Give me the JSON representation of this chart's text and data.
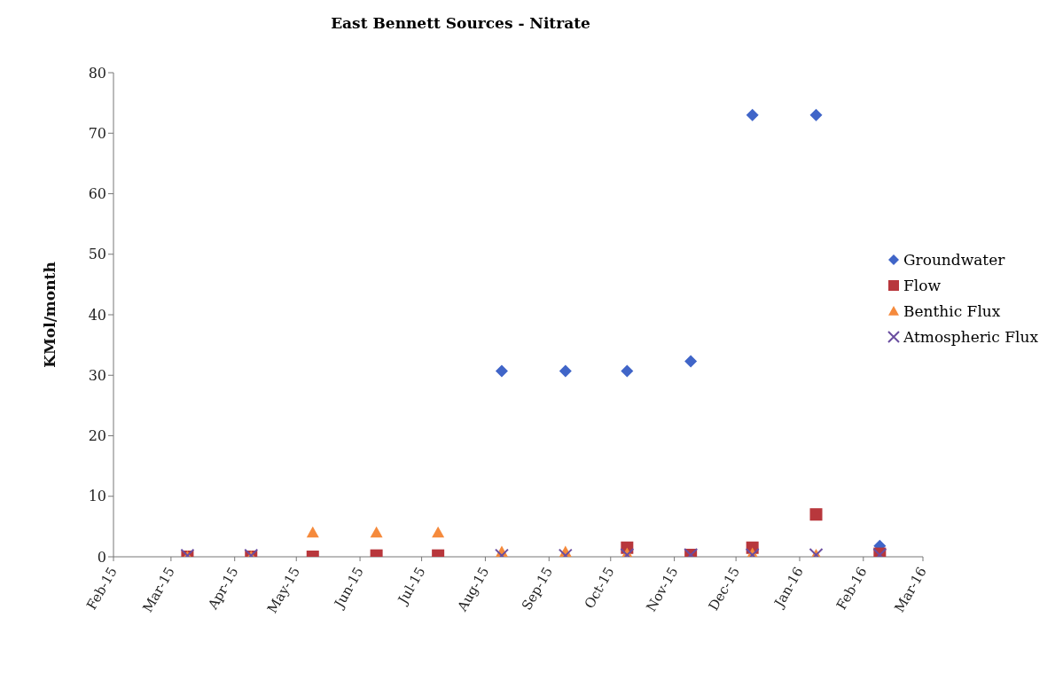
{
  "chart_data": {
    "type": "scatter",
    "title": "East Bennett Sources - Nitrate",
    "ylabel": "KMol/month",
    "x": [
      "2015-03-09",
      "2015-04-09",
      "2015-05-09",
      "2015-06-09",
      "2015-07-09",
      "2015-08-09",
      "2015-09-09",
      "2015-10-09",
      "2015-11-09",
      "2015-12-09",
      "2016-01-09",
      "2016-02-09"
    ],
    "series": [
      {
        "name": "Groundwater",
        "color": "#4065c8",
        "marker": "diamond",
        "values": [
          null,
          null,
          null,
          null,
          null,
          30.7,
          30.7,
          30.7,
          32.3,
          73,
          73,
          1.8
        ]
      },
      {
        "name": "Flow",
        "color": "#b8373c",
        "marker": "square",
        "values": [
          0,
          0,
          0,
          0.2,
          0.2,
          null,
          null,
          1.5,
          0.3,
          1.5,
          7,
          0.5
        ]
      },
      {
        "name": "Benthic Flux",
        "color": "#f58a3c",
        "marker": "triangle",
        "values": [
          0,
          0,
          4,
          4,
          4,
          0.8,
          0.8,
          0.5,
          null,
          0.5,
          0.3,
          null
        ]
      },
      {
        "name": "Atmospheric Flux",
        "color": "#6a4ea0",
        "marker": "cross",
        "values": [
          0.2,
          0.2,
          null,
          null,
          null,
          0.2,
          0.2,
          0.3,
          0.3,
          0.3,
          0.3,
          0.3
        ]
      }
    ],
    "xlim": [
      "2015-02-01",
      "2016-03-01"
    ],
    "xticks": [
      {
        "value": "2015-02-01",
        "label": "Feb-15"
      },
      {
        "value": "2015-03-01",
        "label": "Mar-15"
      },
      {
        "value": "2015-04-01",
        "label": "Apr-15"
      },
      {
        "value": "2015-05-01",
        "label": "May-15"
      },
      {
        "value": "2015-06-01",
        "label": "Jun-15"
      },
      {
        "value": "2015-07-01",
        "label": "Jul-15"
      },
      {
        "value": "2015-08-01",
        "label": "Aug-15"
      },
      {
        "value": "2015-09-01",
        "label": "Sep-15"
      },
      {
        "value": "2015-10-01",
        "label": "Oct-15"
      },
      {
        "value": "2015-11-01",
        "label": "Nov-15"
      },
      {
        "value": "2015-12-01",
        "label": "Dec-15"
      },
      {
        "value": "2016-01-01",
        "label": "Jan-16"
      },
      {
        "value": "2016-02-01",
        "label": "Feb-16"
      },
      {
        "value": "2016-03-01",
        "label": "Mar-16"
      }
    ],
    "ylim": [
      0,
      80
    ],
    "yticks": [
      0,
      10,
      20,
      30,
      40,
      50,
      60,
      70,
      80
    ],
    "grid": false,
    "legend": "right"
  }
}
